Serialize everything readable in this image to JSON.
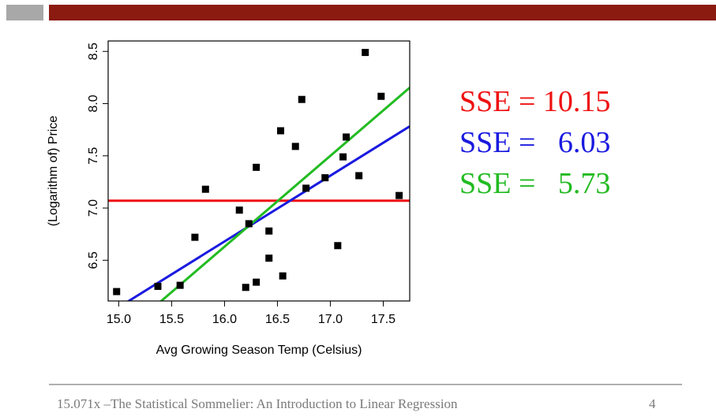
{
  "slide": {
    "footer": "15.071x –The Statistical Sommelier: An Introduction to Linear Regression",
    "page_number": "4",
    "bar_color": "#8b1a10",
    "square_color": "#a8a8a8"
  },
  "sse_labels": [
    {
      "text": "SSE = 10.15",
      "color": "#ee1111"
    },
    {
      "text": "SSE =   6.03",
      "color": "#1a1adf"
    },
    {
      "text": "SSE =   5.73",
      "color": "#22bb22"
    }
  ],
  "chart_data": {
    "type": "scatter",
    "xlabel": "Avg Growing Season Temp (Celsius)",
    "ylabel": "(Logarithm of) Price",
    "xlim": [
      14.9,
      17.75
    ],
    "ylim": [
      6.11,
      8.6
    ],
    "xticks": [
      15.0,
      15.5,
      16.0,
      16.5,
      17.0,
      17.5
    ],
    "yticks": [
      6.5,
      7.0,
      7.5,
      8.0,
      8.5
    ],
    "grid": false,
    "points": [
      [
        14.98,
        6.2
      ],
      [
        15.37,
        6.25
      ],
      [
        15.58,
        6.26
      ],
      [
        15.72,
        6.72
      ],
      [
        15.82,
        7.18
      ],
      [
        16.14,
        6.98
      ],
      [
        16.2,
        6.24
      ],
      [
        16.23,
        6.85
      ],
      [
        16.3,
        7.39
      ],
      [
        16.3,
        6.29
      ],
      [
        16.42,
        6.78
      ],
      [
        16.42,
        6.52
      ],
      [
        16.53,
        7.74
      ],
      [
        16.55,
        6.35
      ],
      [
        16.67,
        7.59
      ],
      [
        16.73,
        8.04
      ],
      [
        16.77,
        7.19
      ],
      [
        16.95,
        7.29
      ],
      [
        17.07,
        6.64
      ],
      [
        17.12,
        7.49
      ],
      [
        17.15,
        7.68
      ],
      [
        17.27,
        7.31
      ],
      [
        17.33,
        8.49
      ],
      [
        17.48,
        8.07
      ],
      [
        17.65,
        7.12
      ]
    ],
    "lines": [
      {
        "color": "#ee1111",
        "intercept": 7.07,
        "slope": 0.0
      },
      {
        "color": "#1a1adf",
        "intercept": -3.4,
        "slope": 0.63
      },
      {
        "color": "#22bb22",
        "intercept": -7.29,
        "slope": 0.87
      }
    ]
  }
}
